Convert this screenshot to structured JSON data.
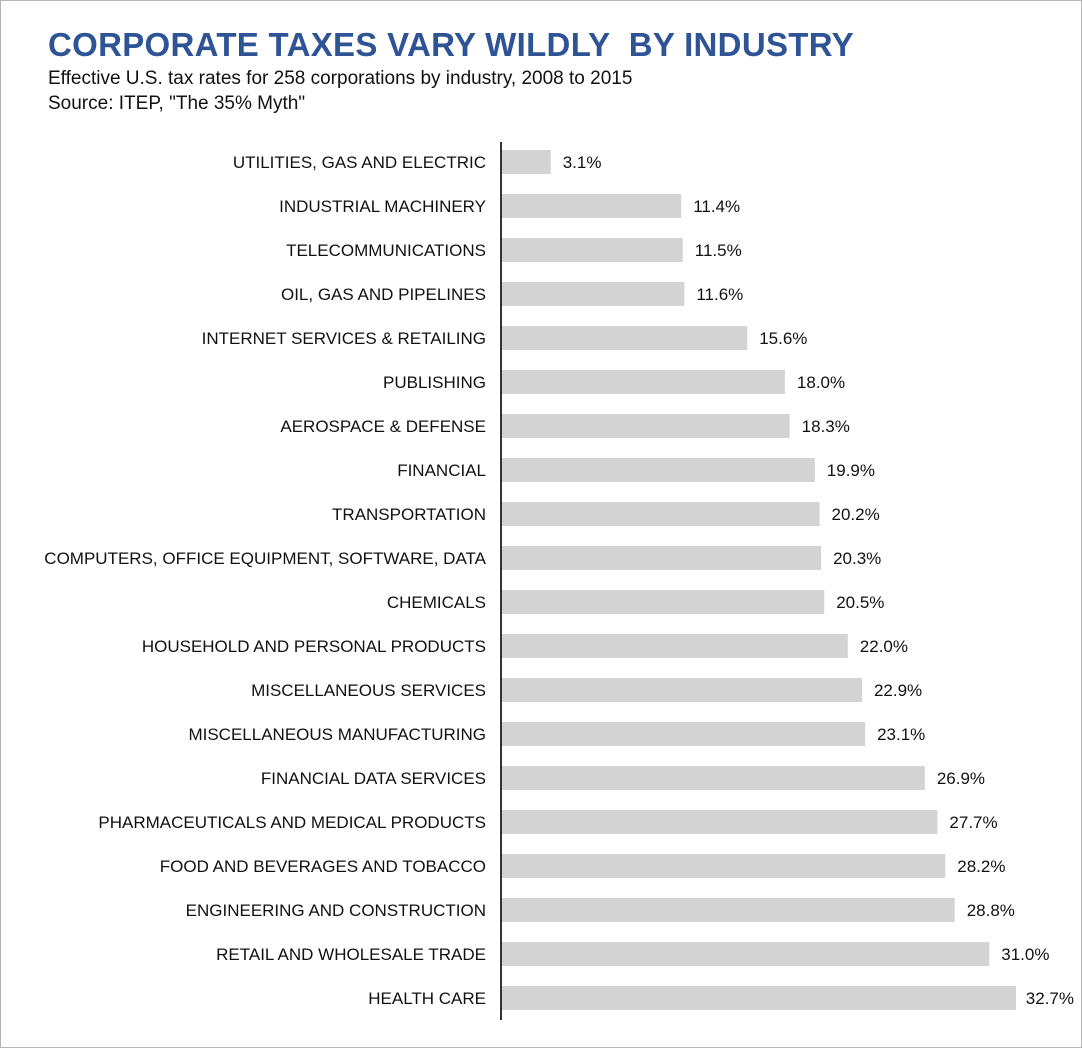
{
  "title": "CORPORATE TAXES VARY WILDLY  BY INDUSTRY",
  "subtitle": "Effective U.S. tax rates for 258 corporations by industry, 2008 to 2015",
  "source": "Source: ITEP, \"The 35% Myth\"",
  "colors": {
    "title": "#2f5496",
    "bar": "#d3d3d3",
    "axis": "#333333",
    "text": "#111111"
  },
  "chart_data": {
    "type": "bar",
    "orientation": "horizontal",
    "categories": [
      "UTILITIES, GAS AND ELECTRIC",
      "INDUSTRIAL MACHINERY",
      "TELECOMMUNICATIONS",
      "OIL, GAS AND PIPELINES",
      "INTERNET SERVICES & RETAILING",
      "PUBLISHING",
      "AEROSPACE & DEFENSE",
      "FINANCIAL",
      "TRANSPORTATION",
      "COMPUTERS, OFFICE EQUIPMENT, SOFTWARE, DATA",
      "CHEMICALS",
      "HOUSEHOLD AND PERSONAL PRODUCTS",
      "MISCELLANEOUS SERVICES ",
      "MISCELLANEOUS MANUFACTURING",
      "FINANCIAL DATA SERVICES",
      "PHARMACEUTICALS AND MEDICAL PRODUCTS",
      "FOOD AND BEVERAGES AND TOBACCO",
      "ENGINEERING AND CONSTRUCTION",
      "RETAIL AND WHOLESALE TRADE",
      "HEALTH CARE"
    ],
    "values": [
      3.1,
      11.4,
      11.5,
      11.6,
      15.6,
      18.0,
      18.3,
      19.9,
      20.2,
      20.3,
      20.5,
      22.0,
      22.9,
      23.1,
      26.9,
      27.7,
      28.2,
      28.8,
      31.0,
      32.7
    ],
    "value_labels": [
      "3.1%",
      "11.4%",
      "11.5%",
      "11.6%",
      "15.6%",
      "18.0%",
      "18.3%",
      "19.9%",
      "20.2%",
      "20.3%",
      "20.5%",
      "22.0%",
      "22.9%",
      "23.1%",
      "26.9%",
      "27.7%",
      "28.2%",
      "28.8%",
      "31.0%",
      "32.7%"
    ],
    "xlim": [
      0,
      32.7
    ],
    "grid": false,
    "legend": "none"
  }
}
